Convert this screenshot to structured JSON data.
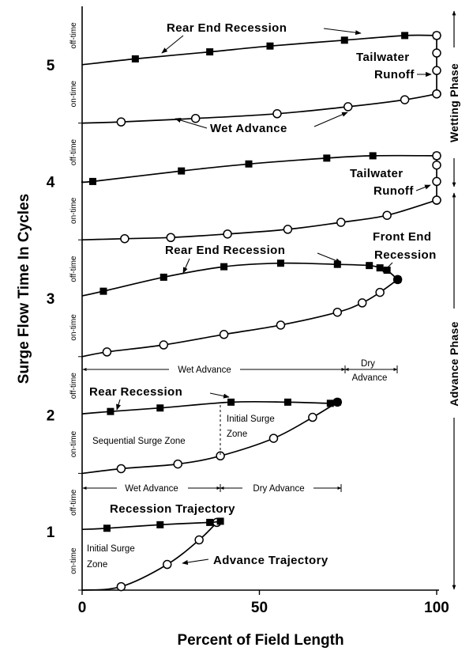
{
  "chart_data": {
    "type": "line",
    "title": "",
    "xlabel": "Percent of Field Length",
    "ylabel": "Surge Flow Time In Cycles",
    "xlim": [
      0,
      100
    ],
    "ylim": [
      0.5,
      5.5
    ],
    "x_ticks": [
      "0",
      "50",
      "100"
    ],
    "y_ticks": [
      "1",
      "2",
      "3",
      "4",
      "5"
    ],
    "sub_tick_labels": {
      "on": "on-time",
      "off": "off-time"
    },
    "series": [
      {
        "kind": "advance",
        "x": [
          0,
          11,
          24,
          33,
          38
        ],
        "y": [
          0.5,
          0.53,
          0.72,
          0.93,
          1.08
        ]
      },
      {
        "kind": "recession",
        "x": [
          0,
          7,
          22,
          36,
          39
        ],
        "y": [
          1.02,
          1.03,
          1.06,
          1.08,
          1.09
        ]
      },
      {
        "kind": "advance",
        "x": [
          0,
          11,
          27,
          39,
          54,
          65,
          72
        ],
        "y": [
          1.5,
          1.54,
          1.58,
          1.65,
          1.8,
          1.98,
          2.11
        ]
      },
      {
        "kind": "recession",
        "x": [
          0,
          8,
          22,
          42,
          58,
          70,
          72
        ],
        "y": [
          2.01,
          2.03,
          2.06,
          2.11,
          2.11,
          2.1,
          2.11
        ]
      },
      {
        "kind": "advance",
        "x": [
          0,
          7,
          23,
          40,
          56,
          72,
          79,
          84,
          89
        ],
        "y": [
          2.5,
          2.54,
          2.6,
          2.69,
          2.77,
          2.88,
          2.96,
          3.05,
          3.16
        ]
      },
      {
        "kind": "recession",
        "x": [
          0,
          6,
          23,
          40,
          56,
          72,
          81,
          84,
          86,
          89
        ],
        "y": [
          3.02,
          3.06,
          3.18,
          3.27,
          3.3,
          3.29,
          3.28,
          3.26,
          3.24,
          3.16
        ]
      },
      {
        "kind": "advance",
        "x": [
          0,
          12,
          25,
          41,
          58,
          73,
          86,
          100
        ],
        "y": [
          3.5,
          3.51,
          3.52,
          3.55,
          3.59,
          3.65,
          3.71,
          3.84
        ]
      },
      {
        "kind": "recession",
        "x": [
          0,
          3,
          28,
          47,
          69,
          82,
          100
        ],
        "y": [
          4.0,
          4.0,
          4.09,
          4.15,
          4.2,
          4.22,
          4.22
        ]
      },
      {
        "kind": "runoff",
        "x": [
          100,
          100,
          100,
          100
        ],
        "y": [
          3.84,
          4.0,
          4.14,
          4.22
        ]
      },
      {
        "kind": "advance",
        "x": [
          0,
          11,
          32,
          55,
          75,
          91,
          100
        ],
        "y": [
          4.5,
          4.51,
          4.54,
          4.58,
          4.64,
          4.7,
          4.75
        ]
      },
      {
        "kind": "recession",
        "x": [
          0,
          15,
          36,
          53,
          74,
          91,
          100
        ],
        "y": [
          5.0,
          5.05,
          5.11,
          5.16,
          5.21,
          5.25,
          5.25
        ]
      },
      {
        "kind": "runoff",
        "x": [
          100,
          100,
          100,
          100
        ],
        "y": [
          4.75,
          4.95,
          5.1,
          5.25
        ]
      }
    ],
    "annotations": {
      "rear_end_recession_top": "Rear End Recession",
      "tailwater_runoff_top": "Tailwater",
      "tailwater_runoff_top_2": "Runoff",
      "wet_advance_top": "Wet Advance",
      "tailwater_runoff_mid": "Tailwater",
      "tailwater_runoff_mid_2": "Runoff",
      "rear_end_recession_mid": "Rear End Recession",
      "front_end_recession": "Front End",
      "front_end_recession_2": "Recession",
      "wet_advance_mid": "Wet Advance",
      "dry_advance_mid": "Dry",
      "dry_advance_mid_2": "Advance",
      "rear_recession": "Rear Recession",
      "initial_surge_zone_mid": "Initial Surge",
      "initial_surge_zone_mid_2": "Zone",
      "sequential_surge_zone": "Sequential Surge Zone",
      "wet_advance_low": "Wet Advance",
      "dry_advance_low": "Dry Advance",
      "recession_trajectory": "Recession Trajectory",
      "initial_surge_zone_low": "Initial Surge",
      "initial_surge_zone_low_2": "Zone",
      "advance_trajectory": "Advance Trajectory"
    },
    "phases": {
      "wetting": "Wetting Phase",
      "advance": "Advance Phase"
    },
    "legend": "none",
    "grid": false
  }
}
